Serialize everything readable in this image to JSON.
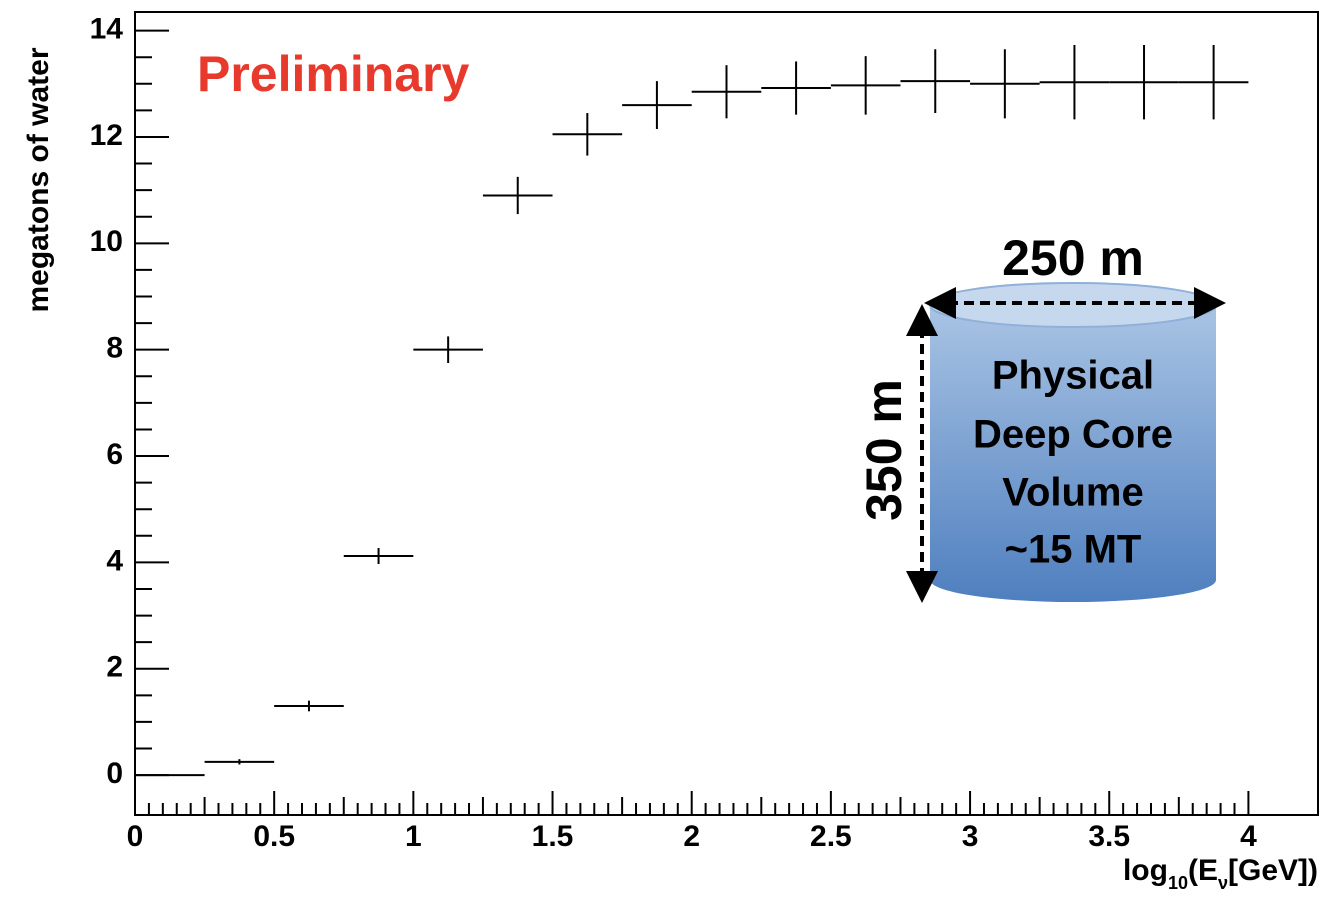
{
  "chart_data": {
    "type": "histogram",
    "ylabel": "megatons of water",
    "xlabel_parts": [
      "log",
      "10",
      "(E",
      "ν",
      "[GeV])"
    ],
    "bins": [
      0,
      0.25,
      0.5,
      0.75,
      1,
      1.25,
      1.5,
      1.75,
      2,
      2.25,
      2.5,
      2.75,
      3,
      3.25,
      3.5,
      3.75,
      4
    ],
    "values": [
      0,
      0.25,
      1.3,
      4.12,
      8.0,
      10.9,
      12.05,
      12.6,
      12.85,
      12.92,
      12.97,
      13.05,
      13.0,
      13.03,
      13.03,
      13.03
    ],
    "errors": [
      0,
      0.05,
      0.1,
      0.15,
      0.25,
      0.35,
      0.4,
      0.45,
      0.5,
      0.5,
      0.55,
      0.6,
      0.65,
      0.7,
      0.7,
      0.7
    ],
    "color": "#000000",
    "xlim": [
      0,
      4.25
    ],
    "ylim": [
      -0.75,
      14.35
    ],
    "xticks": [
      0,
      0.5,
      1,
      1.5,
      2,
      2.5,
      3,
      3.5,
      4
    ],
    "yticks": [
      0,
      2,
      4,
      6,
      8,
      10,
      12,
      14
    ],
    "grid": false,
    "annotations": {
      "preliminary": "Preliminary",
      "width": "250 m",
      "height": "350 m",
      "volume": [
        "Physical",
        "Deep Core",
        "Volume",
        "~15 MT"
      ]
    }
  }
}
